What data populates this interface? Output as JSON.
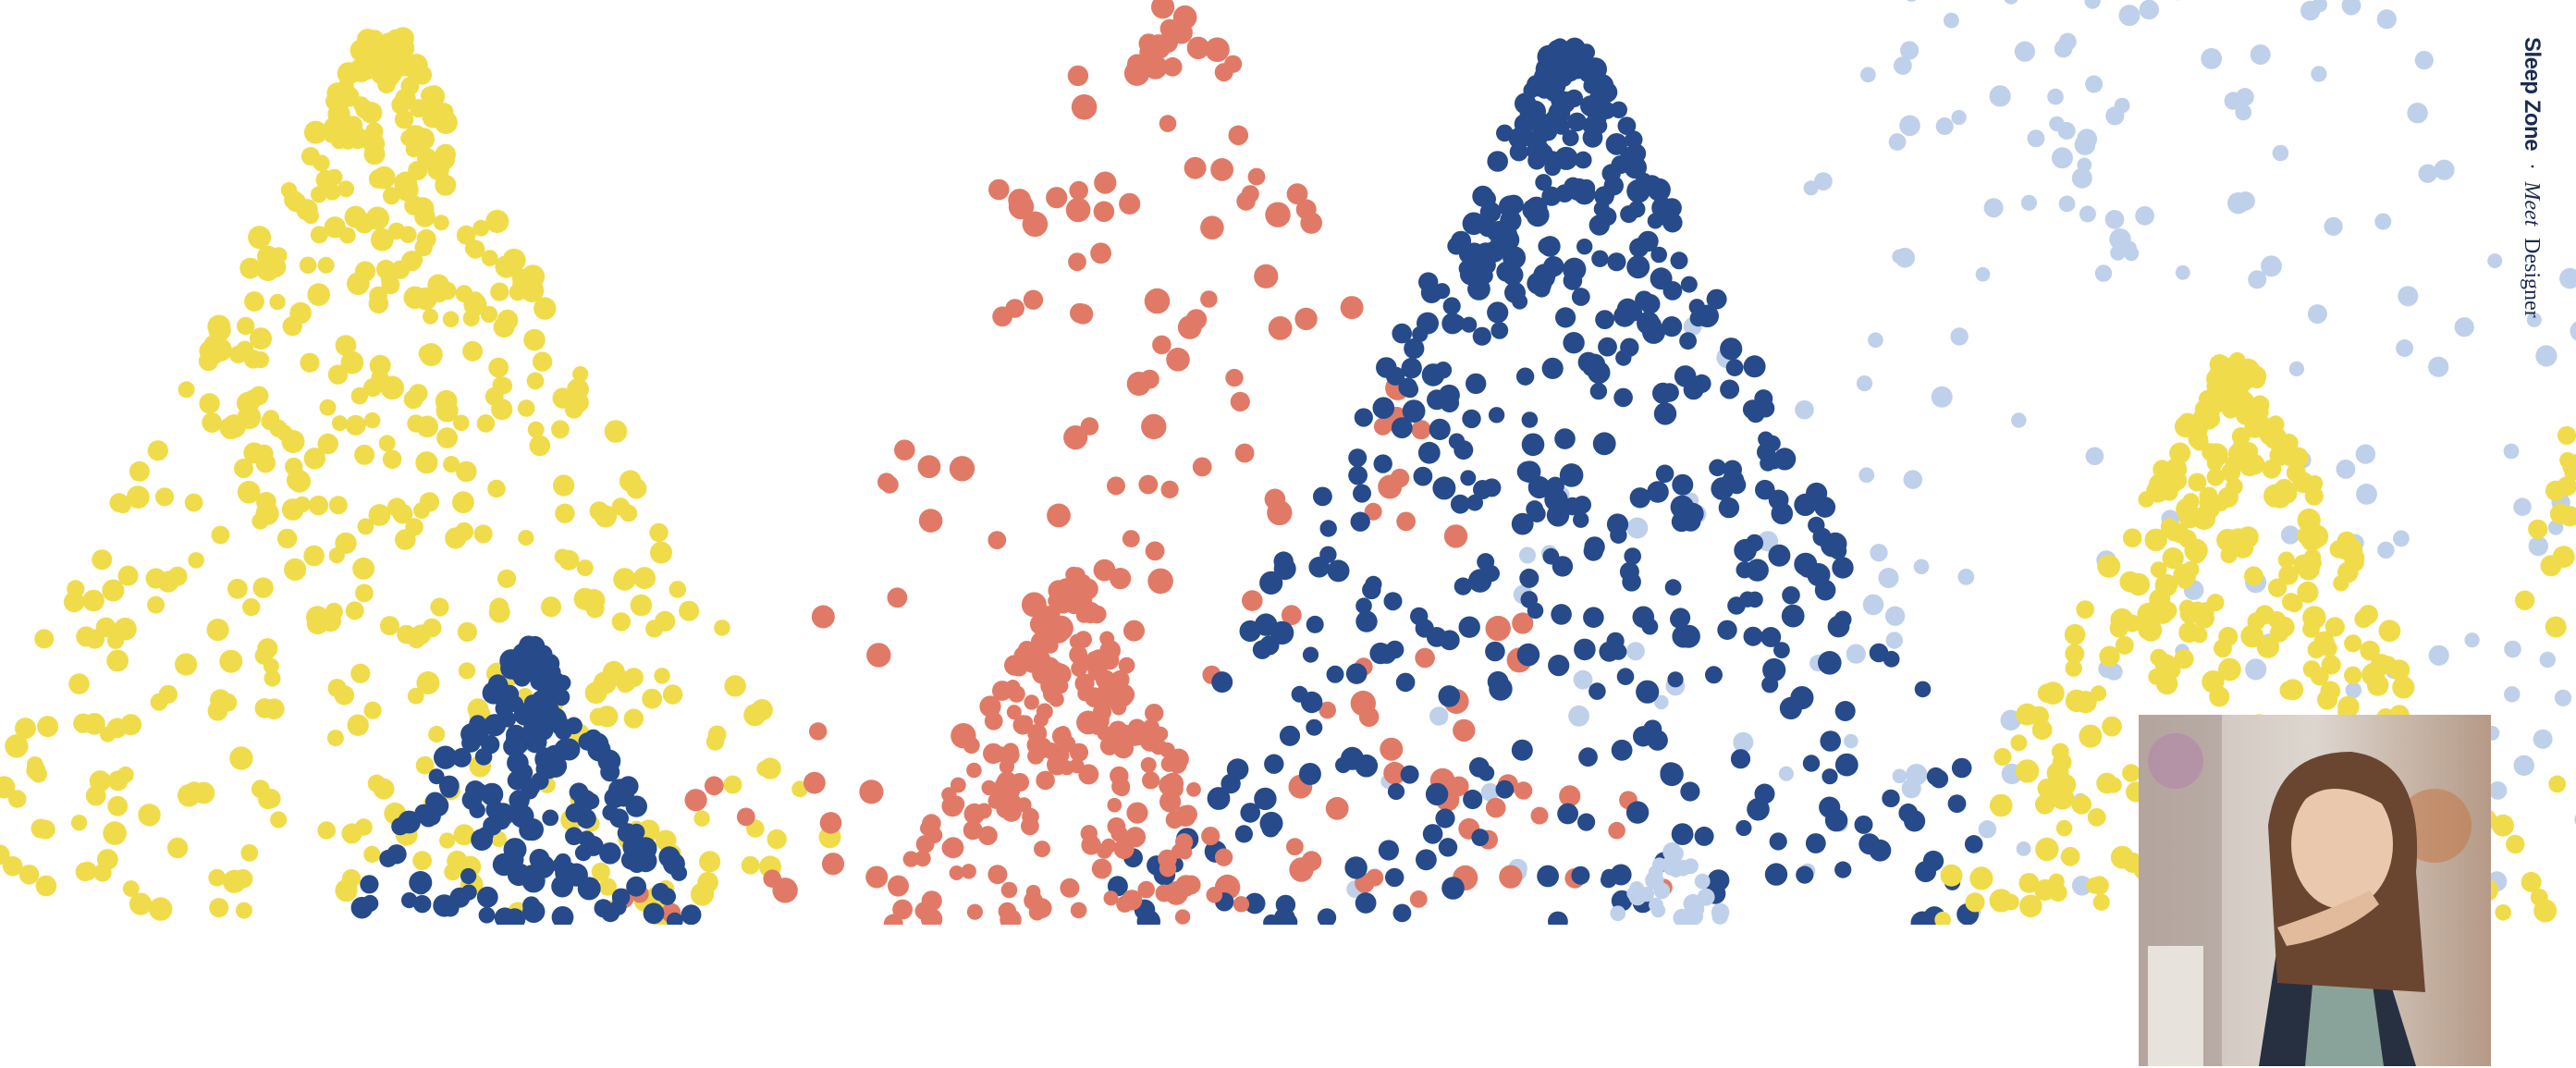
{
  "header": {
    "brand": "Sleep Zone",
    "separator": "·",
    "tagline_italic": "Meet",
    "tagline": "Designer"
  }
}
